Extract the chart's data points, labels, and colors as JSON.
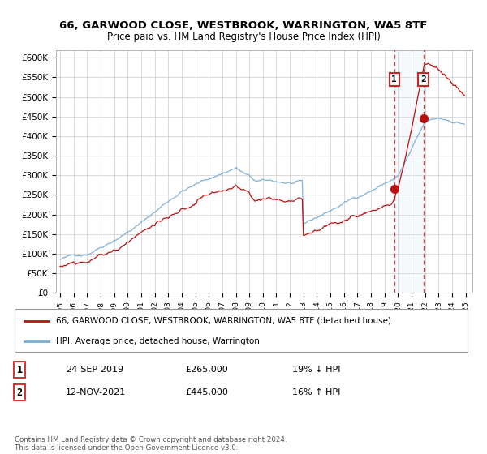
{
  "title": "66, GARWOOD CLOSE, WESTBROOK, WARRINGTON, WA5 8TF",
  "subtitle": "Price paid vs. HM Land Registry's House Price Index (HPI)",
  "ylim": [
    0,
    620000
  ],
  "yticks": [
    0,
    50000,
    100000,
    150000,
    200000,
    250000,
    300000,
    350000,
    400000,
    450000,
    500000,
    550000,
    600000
  ],
  "xlim_start": 1994.7,
  "xlim_end": 2025.5,
  "legend_line1": "66, GARWOOD CLOSE, WESTBROOK, WARRINGTON, WA5 8TF (detached house)",
  "legend_line2": "HPI: Average price, detached house, Warrington",
  "sale1_date": "24-SEP-2019",
  "sale1_price": "£265,000",
  "sale1_note": "19% ↓ HPI",
  "sale2_date": "12-NOV-2021",
  "sale2_price": "£445,000",
  "sale2_note": "16% ↑ HPI",
  "footnote": "Contains HM Land Registry data © Crown copyright and database right 2024.\nThis data is licensed under the Open Government Licence v3.0.",
  "hpi_color": "#7AADD4",
  "sale_color": "#BB1111",
  "marker_color": "#BB1111",
  "vline_color": "#CC2222",
  "shade_color": "#D8E8F5",
  "background_color": "#FFFFFF",
  "grid_color": "#CCCCCC",
  "sale1_year": 2019.72,
  "sale1_val": 265000,
  "sale2_year": 2021.87,
  "sale2_val": 445000
}
